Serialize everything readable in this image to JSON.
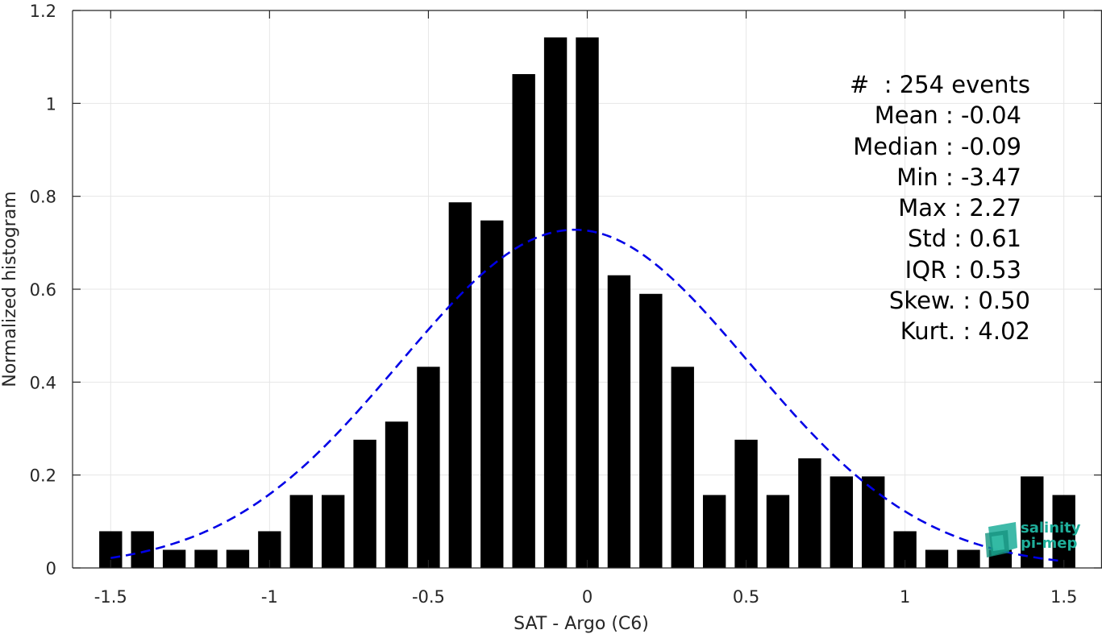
{
  "chart_data": {
    "type": "bar",
    "xlabel": "SAT - Argo (C6)",
    "ylabel": "Normalized histogram",
    "xlim": [
      -1.62,
      1.62
    ],
    "ylim": [
      0,
      1.2
    ],
    "grid": true,
    "xticks": [
      -1.5,
      -1,
      -0.5,
      0,
      0.5,
      1,
      1.5
    ],
    "xtick_labels": [
      "-1.5",
      "-1",
      "-0.5",
      "0",
      "0.5",
      "1",
      "1.5"
    ],
    "yticks": [
      0,
      0.2,
      0.4,
      0.6,
      0.8,
      1,
      1.2
    ],
    "ytick_labels": [
      "0",
      "0.2",
      "0.4",
      "0.6",
      "0.8",
      "1",
      "1.2"
    ],
    "bar_color": "#000000",
    "bin_centers": [
      -1.5,
      -1.4,
      -1.3,
      -1.2,
      -1.1,
      -1.0,
      -0.9,
      -0.8,
      -0.7,
      -0.6,
      -0.5,
      -0.4,
      -0.3,
      -0.2,
      -0.1,
      0.0,
      0.1,
      0.2,
      0.3,
      0.4,
      0.5,
      0.6,
      0.7,
      0.8,
      0.9,
      1.0,
      1.1,
      1.2,
      1.3,
      1.4,
      1.5
    ],
    "values": [
      0.079,
      0.079,
      0.039,
      0.039,
      0.039,
      0.079,
      0.157,
      0.157,
      0.276,
      0.315,
      0.433,
      0.787,
      0.748,
      1.063,
      1.142,
      1.142,
      0.63,
      0.59,
      0.433,
      0.157,
      0.276,
      0.157,
      0.236,
      0.197,
      0.197,
      0.079,
      0.039,
      0.039,
      0.039,
      0.197,
      0.157
    ],
    "fit_curve": {
      "style": "dashed",
      "color": "#0000e6",
      "mean": -0.04,
      "std": 0.55,
      "peak": 0.728,
      "x_range": [
        -1.5,
        1.5
      ]
    },
    "annotation": {
      "rows": [
        {
          "label": "#  ",
          "value": " 254 events"
        },
        {
          "label": "Mean ",
          "value": " -0.04"
        },
        {
          "label": "Median ",
          "value": " -0.09"
        },
        {
          "label": "Min ",
          "value": " -3.47"
        },
        {
          "label": "Max ",
          "value": " 2.27"
        },
        {
          "label": "Std ",
          "value": " 0.61"
        },
        {
          "label": "IQR ",
          "value": " 0.53"
        },
        {
          "label": "Skew. ",
          "value": " 0.50"
        },
        {
          "label": "Kurt. ",
          "value": " 4.02"
        }
      ]
    }
  },
  "logo": {
    "line1": "salinity",
    "line2": "pi-mep",
    "color": "#1fae9a"
  }
}
